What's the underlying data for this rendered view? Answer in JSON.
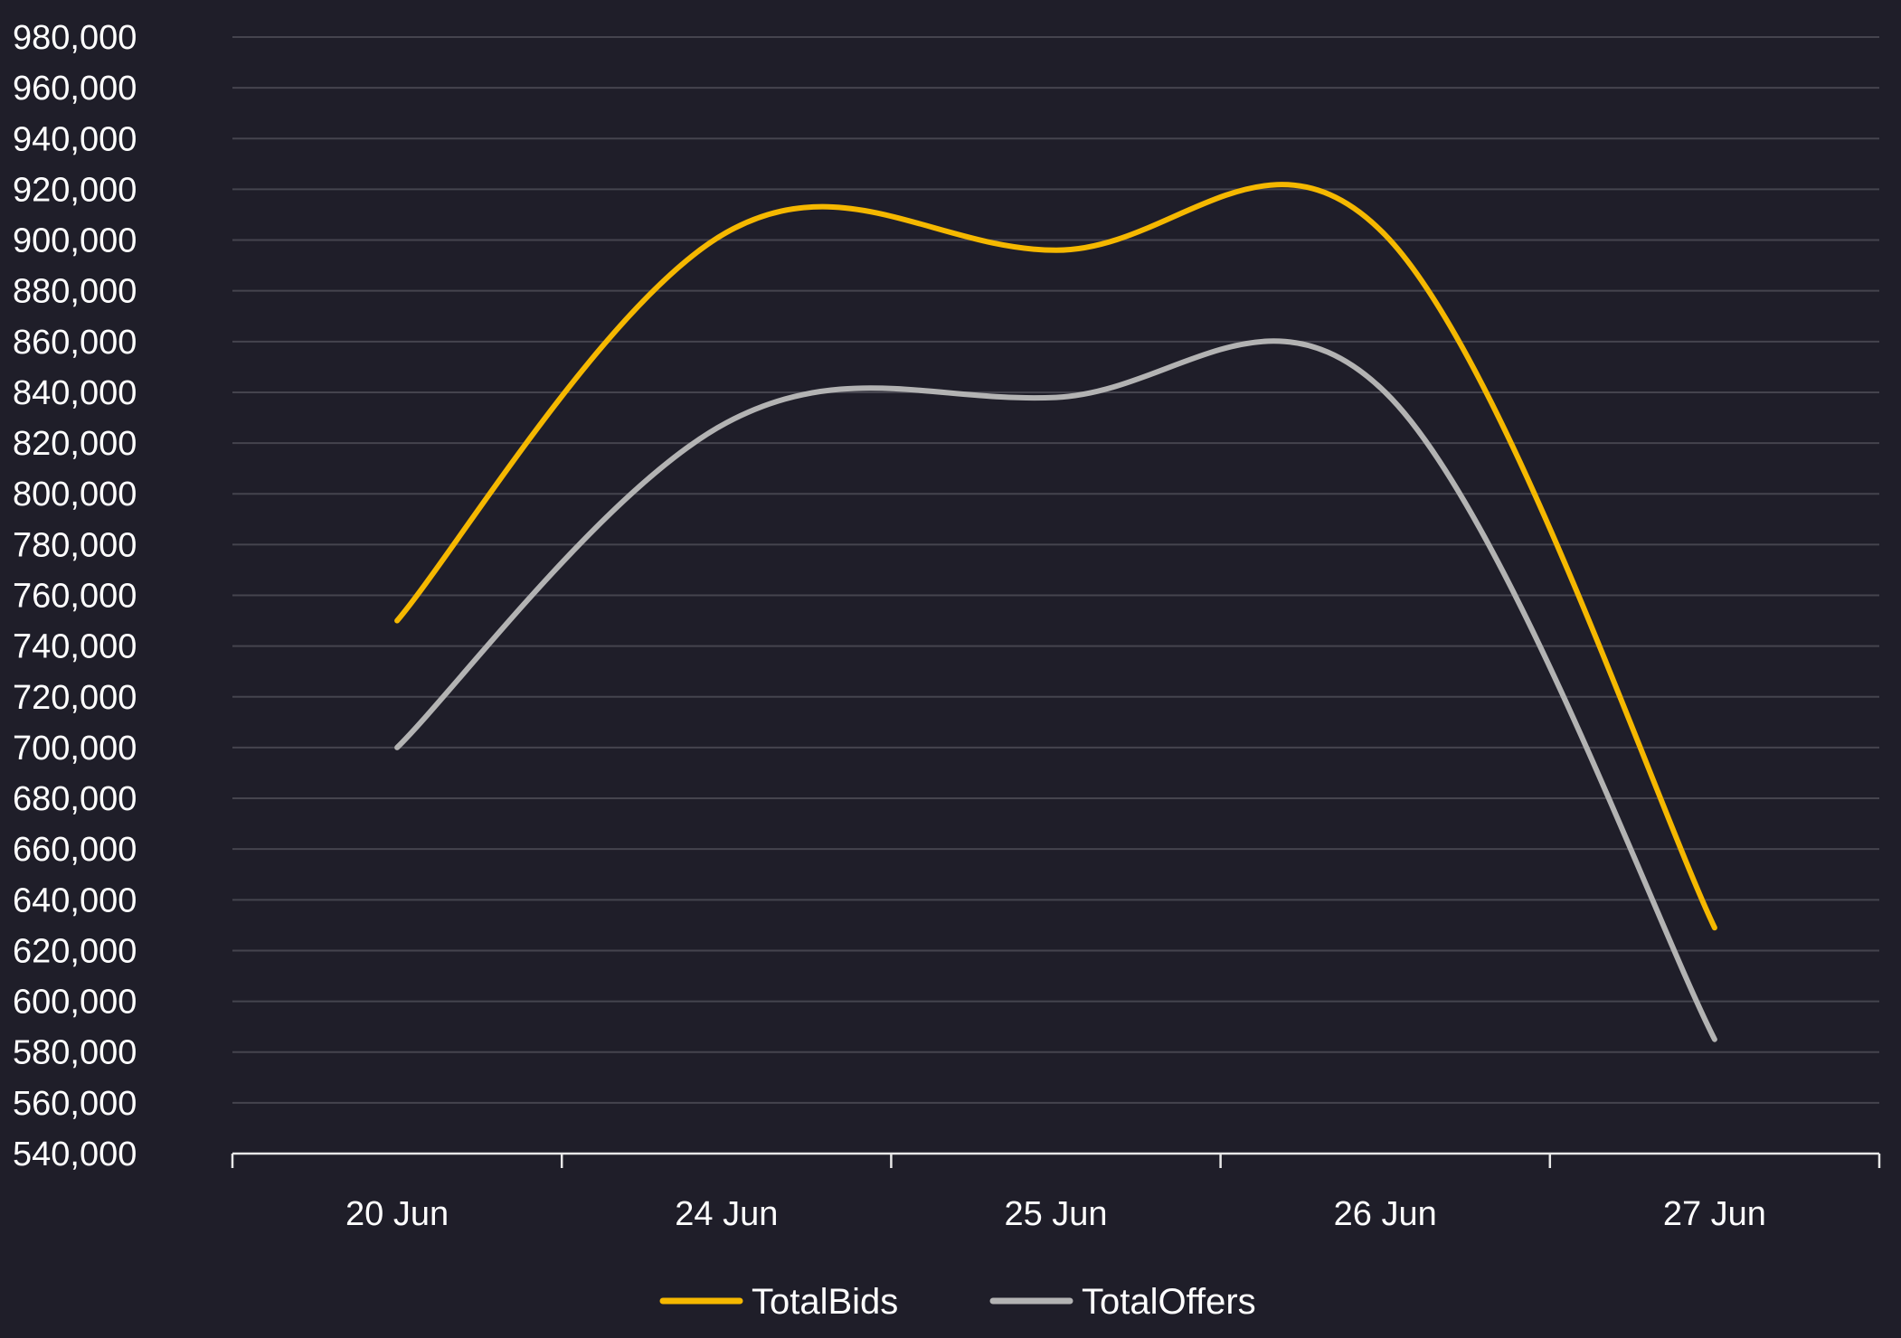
{
  "chart_data": {
    "type": "line",
    "categories": [
      "20 Jun",
      "24 Jun",
      "25 Jun",
      "26 Jun",
      "27 Jun"
    ],
    "series": [
      {
        "name": "TotalBids",
        "values": [
          750000,
          903000,
          896000,
          902000,
          629000
        ],
        "color": "#f5b800"
      },
      {
        "name": "TotalOffers",
        "values": [
          700000,
          828000,
          838000,
          840000,
          585000
        ],
        "color": "#b3b3b3"
      }
    ],
    "ylim": [
      540000,
      980000
    ],
    "ystep": 20000,
    "grid": true,
    "legend": "bottom-center",
    "background": "#1f1e29"
  }
}
